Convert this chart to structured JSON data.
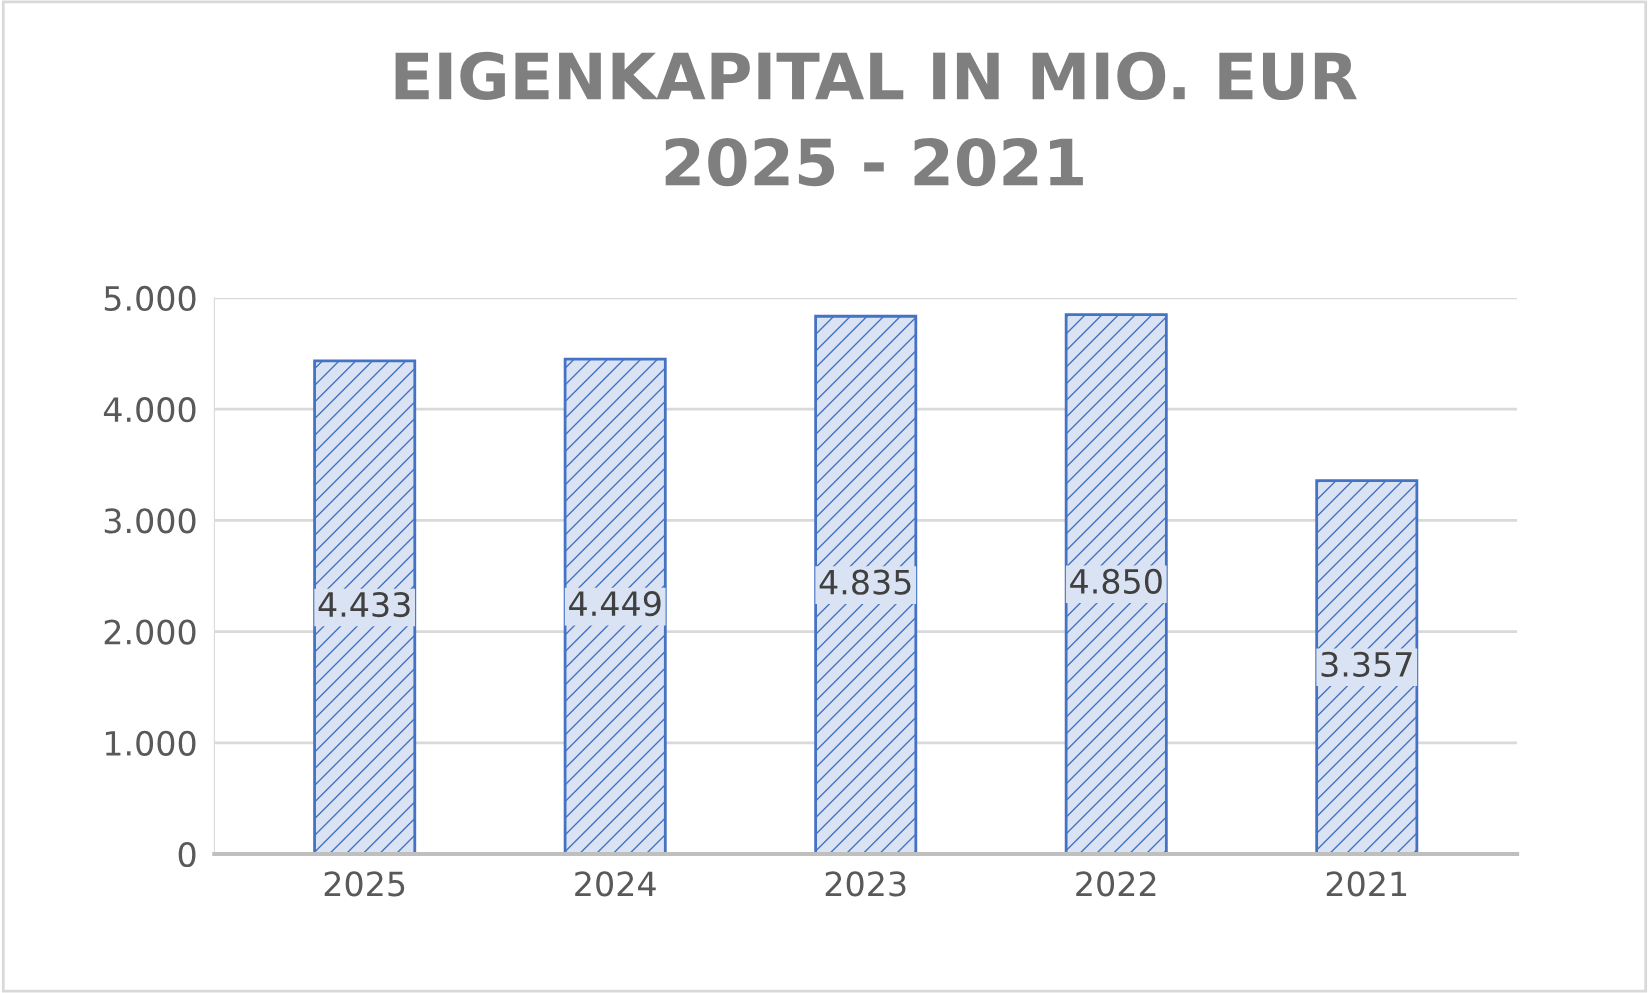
{
  "chart_data": {
    "type": "bar",
    "title": "EIGENKAPITAL IN MIO. EUR\n2025 - 2021",
    "categories": [
      "2025",
      "2024",
      "2023",
      "2022",
      "2021"
    ],
    "values": [
      4433,
      4449,
      4835,
      4850,
      3357
    ],
    "value_labels": [
      "4.433",
      "4.449",
      "4.835",
      "4.850",
      "3.357"
    ],
    "color": "#4472c4",
    "ylim": [
      0,
      5000
    ],
    "yticks": [
      {
        "value": 0,
        "label": "0"
      },
      {
        "value": 1000,
        "label": "1.000"
      },
      {
        "value": 2000,
        "label": "2.000"
      },
      {
        "value": 3000,
        "label": "3.000"
      },
      {
        "value": 4000,
        "label": "4.000"
      },
      {
        "value": 5000,
        "label": "5.000"
      }
    ],
    "grid": "y"
  }
}
